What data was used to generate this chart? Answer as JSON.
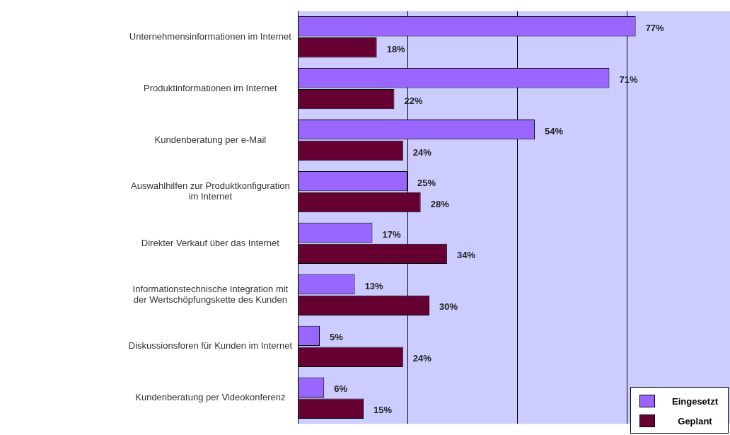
{
  "chart_data": {
    "type": "bar",
    "orientation": "horizontal",
    "categories": [
      "Unternehmensinformationen im Internet",
      "Produktinformationen im Internet",
      "Kundenberatung per e-Mail",
      "Auswahlhilfen zur Produktkonfiguration im Internet",
      "Direkter Verkauf über das Internet",
      "Informationstechnische Integration mit der Wertschöpfungskette des Kunden",
      "Diskussionsforen für Kunden im Internet",
      "Kundenberatung per Videokonferenz"
    ],
    "series": [
      {
        "name": "Eingesetzt",
        "color": "#9966ff",
        "values": [
          77,
          71,
          54,
          25,
          17,
          13,
          5,
          6
        ],
        "value_labels": [
          "77%",
          "71%",
          "54%",
          "25%",
          "17%",
          "13%",
          "5%",
          "6%"
        ]
      },
      {
        "name": "Geplant",
        "color": "#660033",
        "values": [
          18,
          22,
          24,
          28,
          34,
          30,
          24,
          15
        ],
        "value_labels": [
          "18%",
          "22%",
          "24%",
          "28%",
          "34%",
          "30%",
          "24%",
          "15%"
        ]
      }
    ],
    "xlim": [
      0,
      98.5
    ],
    "xticks": [
      {
        "value": 0,
        "label": null
      },
      {
        "value": 25,
        "label": null
      },
      {
        "value": 50,
        "label": null
      },
      {
        "value": 75,
        "label": null
      }
    ],
    "grid": "x",
    "tick_labels": "y",
    "legend": "bottom right"
  }
}
